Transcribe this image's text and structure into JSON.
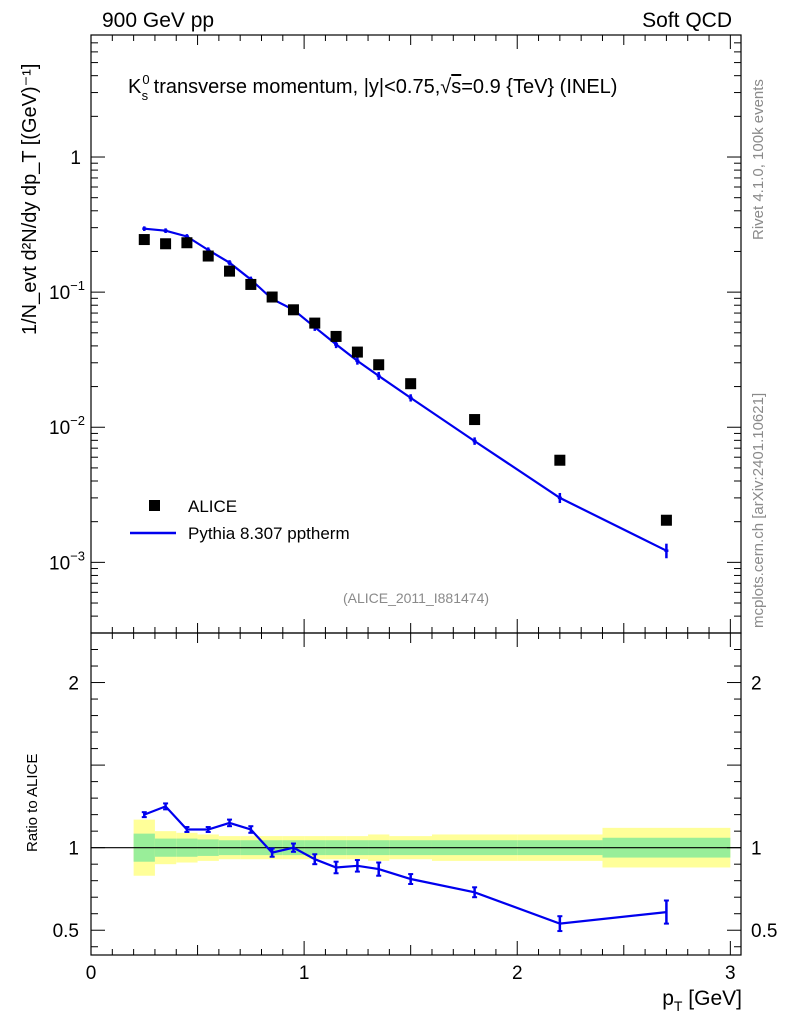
{
  "header": {
    "left": "900 GeV pp",
    "right": "Soft QCD"
  },
  "title": {
    "prefix": "K",
    "sup": "0",
    "sub": "s",
    "text": " transverse momentum, |y|<0.75,",
    "sqrt": "√",
    "s": "s",
    "tail": "=0.9 {TeV} (INEL)"
  },
  "side_labels": {
    "rivet": "Rivet 4.1.0,  100k events",
    "mcplots": "mcplots.cern.ch [arXiv:2401.10621]"
  },
  "analysis_id": "(ALICE_2011_I881474)",
  "xlabel": {
    "main": "p",
    "sub": "T",
    "unit": " [GeV]"
  },
  "ylabel_main": "1/N_evt d²N/dy dp_T [(GeV)⁻¹]",
  "ylabel_ratio": "Ratio to ALICE",
  "legend": {
    "data": "ALICE",
    "mc": "Pythia 8.307 pptherm"
  },
  "chart_data": [
    {
      "type": "scatter",
      "name": "main",
      "yscale": "log",
      "xlim": [
        0,
        3.05
      ],
      "ylim": [
        0.0003,
        8
      ],
      "xlabel": "p_T [GeV]",
      "ylabel": "1/N_evt d²N/dy dp_T [(GeV)^-1]",
      "yticks": [
        {
          "value": 1,
          "label": "1"
        },
        {
          "value": 0.1,
          "label": "10",
          "exp": "−1"
        },
        {
          "value": 0.01,
          "label": "10",
          "exp": "−2"
        },
        {
          "value": 0.001,
          "label": "10",
          "exp": "−3"
        }
      ],
      "series": [
        {
          "name": "ALICE",
          "style": "markers",
          "color": "#000000",
          "x": [
            0.25,
            0.35,
            0.45,
            0.55,
            0.65,
            0.75,
            0.85,
            0.95,
            1.05,
            1.15,
            1.25,
            1.35,
            1.5,
            1.8,
            2.2,
            2.7
          ],
          "y": [
            0.245,
            0.228,
            0.232,
            0.185,
            0.143,
            0.114,
            0.092,
            0.074,
            0.059,
            0.047,
            0.036,
            0.029,
            0.021,
            0.0114,
            0.0057,
            0.00205
          ]
        },
        {
          "name": "Pythia 8.307 pptherm",
          "style": "line",
          "color": "#0000ee",
          "x": [
            0.25,
            0.35,
            0.45,
            0.55,
            0.65,
            0.75,
            0.85,
            0.95,
            1.05,
            1.15,
            1.25,
            1.35,
            1.5,
            1.8,
            2.2,
            2.7
          ],
          "y": [
            0.295,
            0.285,
            0.258,
            0.205,
            0.165,
            0.124,
            0.089,
            0.074,
            0.055,
            0.041,
            0.031,
            0.024,
            0.0165,
            0.0079,
            0.003,
            0.00122
          ],
          "yerr": [
            0.004,
            0.004,
            0.004,
            0.004,
            0.003,
            0.003,
            0.002,
            0.002,
            0.002,
            0.0015,
            0.0012,
            0.001,
            0.0006,
            0.0003,
            0.00018,
            0.00012
          ]
        }
      ]
    },
    {
      "type": "line",
      "name": "ratio",
      "xlim": [
        0,
        3.05
      ],
      "ylim": [
        0.35,
        2.3
      ],
      "xlabel": "p_T [GeV]",
      "ylabel": "Ratio to ALICE",
      "xticks": [
        0,
        1,
        2,
        3
      ],
      "yticks": [
        0.5,
        1,
        2
      ],
      "reference": 1,
      "bands": {
        "bins": [
          [
            0.2,
            0.3
          ],
          [
            0.3,
            0.4
          ],
          [
            0.4,
            0.5
          ],
          [
            0.5,
            0.6
          ],
          [
            0.6,
            0.7
          ],
          [
            0.7,
            0.8
          ],
          [
            0.8,
            0.9
          ],
          [
            0.9,
            1.0
          ],
          [
            1.0,
            1.1
          ],
          [
            1.1,
            1.2
          ],
          [
            1.2,
            1.3
          ],
          [
            1.3,
            1.4
          ],
          [
            1.4,
            1.6
          ],
          [
            1.6,
            2.0
          ],
          [
            2.0,
            2.4
          ],
          [
            2.4,
            3.0
          ]
        ],
        "stat_color": "#99ee99",
        "total_color": "#ffff99",
        "stat": [
          0.085,
          0.055,
          0.055,
          0.05,
          0.045,
          0.045,
          0.045,
          0.045,
          0.045,
          0.045,
          0.045,
          0.045,
          0.045,
          0.045,
          0.045,
          0.06
        ],
        "total": [
          0.17,
          0.1,
          0.09,
          0.08,
          0.07,
          0.07,
          0.07,
          0.07,
          0.07,
          0.07,
          0.07,
          0.08,
          0.07,
          0.08,
          0.08,
          0.12
        ]
      },
      "series": [
        {
          "name": "Pythia 8.307 pptherm / ALICE",
          "color": "#0000ee",
          "x": [
            0.25,
            0.35,
            0.45,
            0.55,
            0.65,
            0.75,
            0.85,
            0.95,
            1.05,
            1.15,
            1.25,
            1.35,
            1.5,
            1.8,
            2.2,
            2.7
          ],
          "y": [
            1.2,
            1.25,
            1.11,
            1.11,
            1.15,
            1.11,
            0.97,
            1.0,
            0.93,
            0.88,
            0.89,
            0.87,
            0.81,
            0.73,
            0.54,
            0.61
          ],
          "yerr": [
            0.015,
            0.018,
            0.015,
            0.015,
            0.02,
            0.02,
            0.025,
            0.025,
            0.03,
            0.035,
            0.035,
            0.04,
            0.03,
            0.03,
            0.045,
            0.07
          ]
        }
      ]
    }
  ]
}
